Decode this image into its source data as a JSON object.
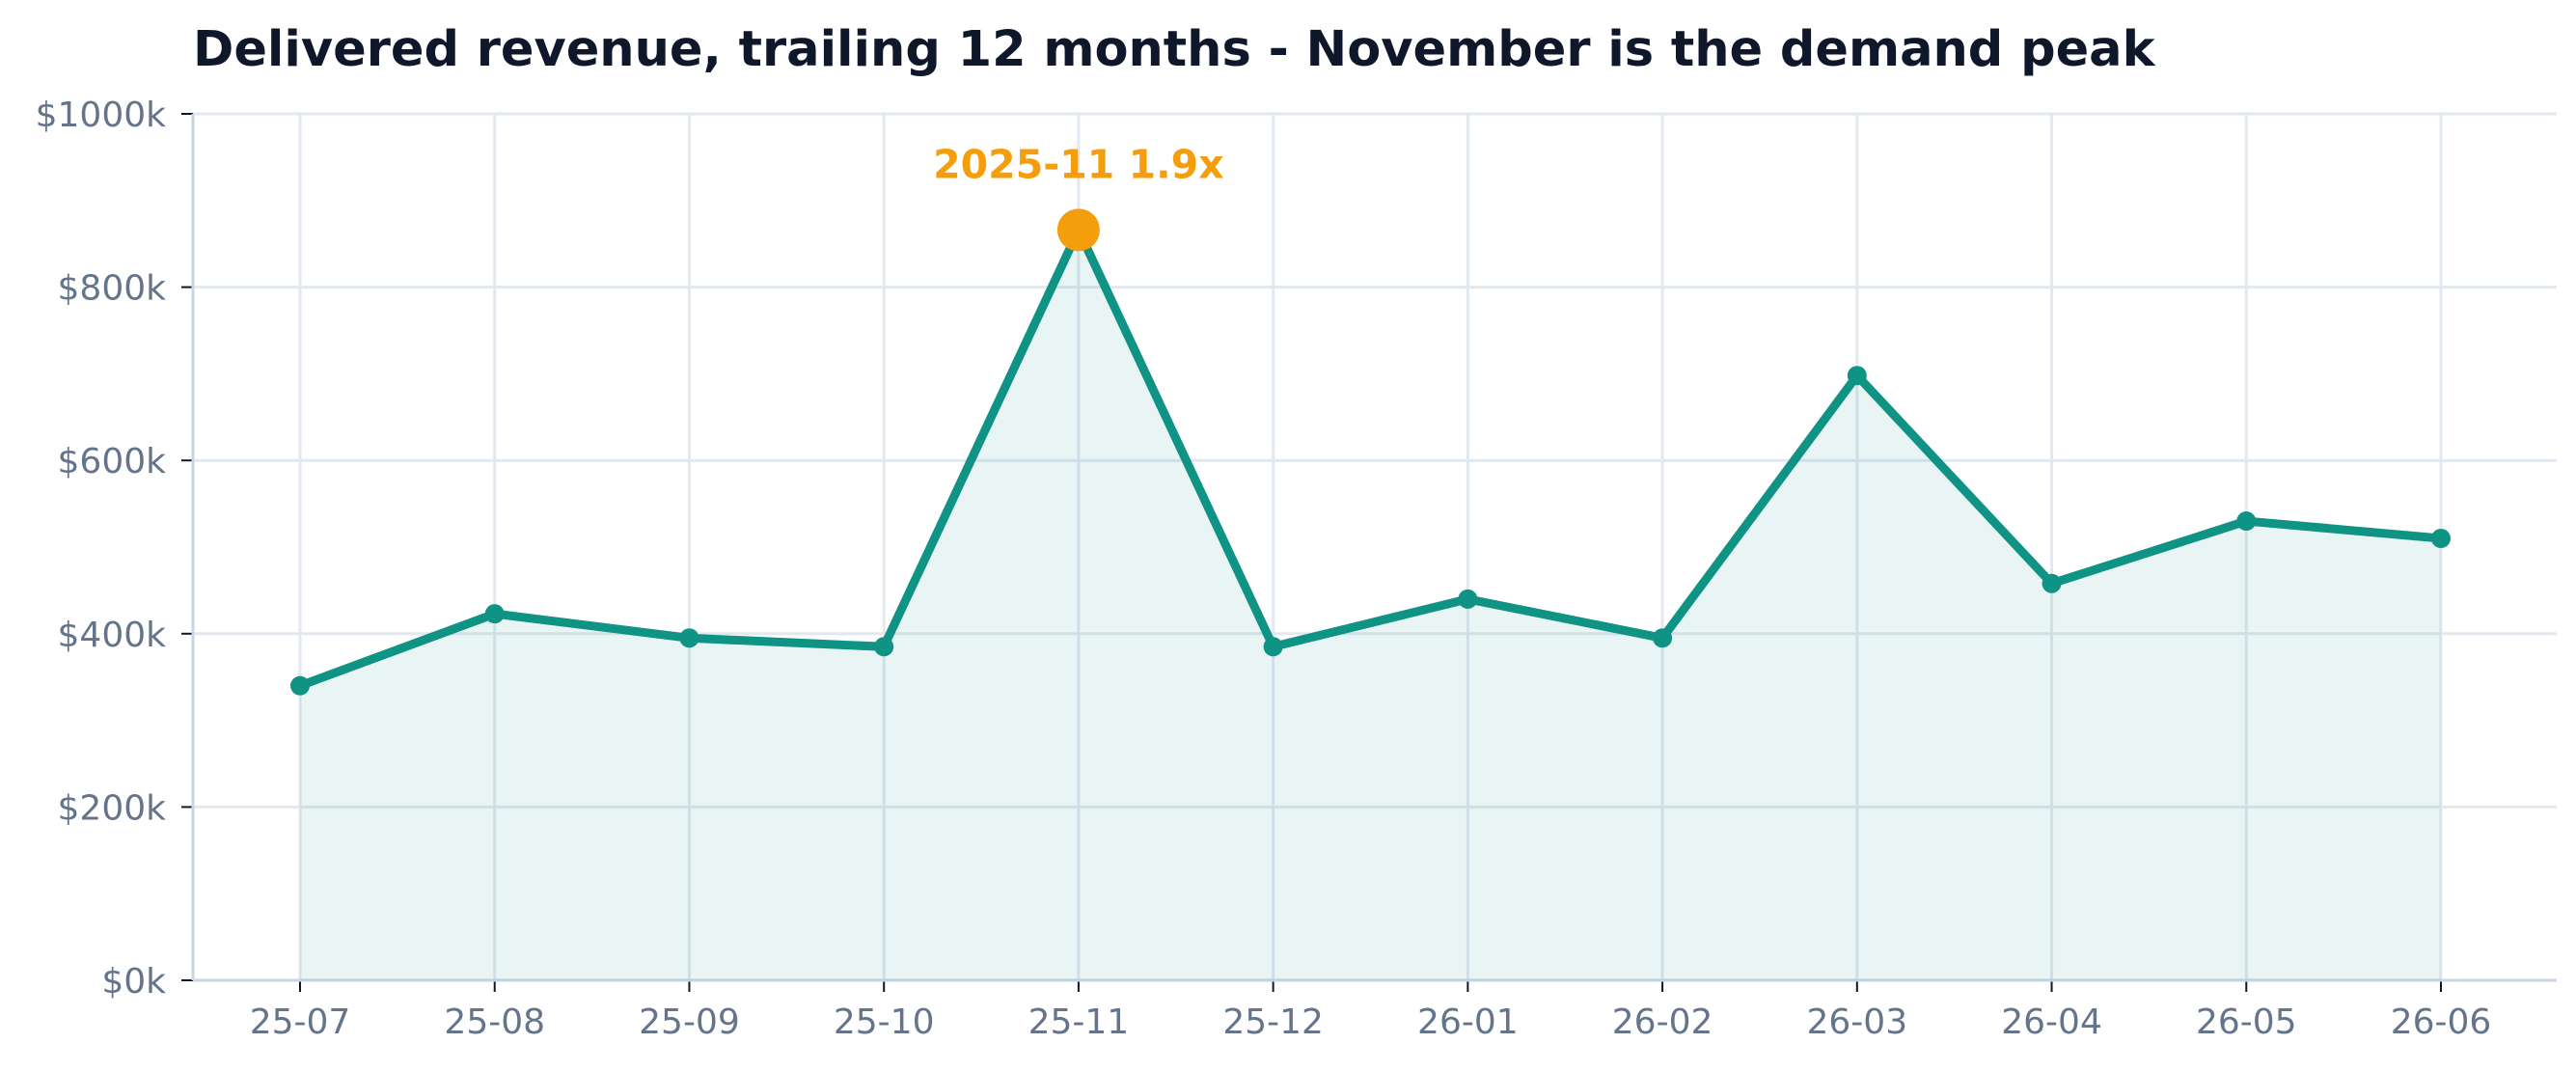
{
  "chart_data": {
    "type": "line",
    "title": "Delivered revenue, trailing 12 months - November is the demand peak",
    "xlabel": "",
    "ylabel": "",
    "categories": [
      "25-07",
      "25-08",
      "25-09",
      "25-10",
      "25-11",
      "25-12",
      "26-01",
      "26-02",
      "26-03",
      "26-04",
      "26-05",
      "26-06"
    ],
    "series": [
      {
        "values": [
          340,
          423,
          395,
          385,
          866,
          385,
          440,
          395,
          698,
          458,
          530,
          510
        ]
      }
    ],
    "value_unit": "thousands of dollars",
    "ylim": [
      0,
      1000
    ],
    "y_ticks": [
      0,
      200,
      400,
      600,
      800,
      1000
    ],
    "y_tick_labels": [
      "$0k",
      "$200k",
      "$400k",
      "$600k",
      "$800k",
      "$1000k"
    ],
    "grid": true,
    "area_fill": true,
    "highlight": {
      "category": "25-11",
      "label": "2025-11  1.9x"
    },
    "colors": {
      "line": "#0e9384",
      "area": "#eaf5f3",
      "highlight": "#f59e0b",
      "grid": "#e2e8f0",
      "axis": "#cbd5e1",
      "title": "#0f172a",
      "tick_text": "#64748b"
    }
  }
}
